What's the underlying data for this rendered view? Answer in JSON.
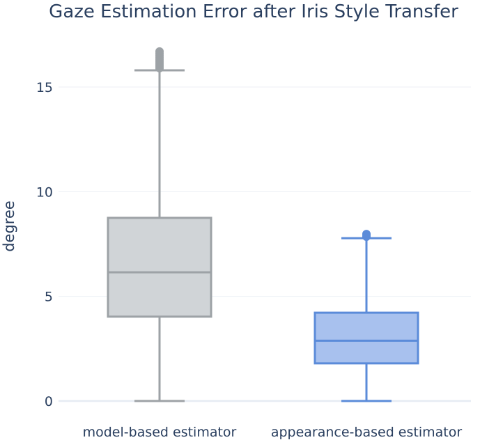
{
  "chart_data": {
    "type": "box",
    "title": "Gaze Estimation Error after Iris Style Transfer",
    "xlabel": "",
    "ylabel": "degree",
    "ylim": [
      0,
      17
    ],
    "yticks": [
      0,
      5,
      10,
      15
    ],
    "grid": true,
    "categories": [
      "model-based estimator",
      "appearance-based estimator"
    ],
    "series": [
      {
        "category": "model-based estimator",
        "color": "#9da2a6",
        "fill": "#d0d4d7",
        "min": 0,
        "q1": 4.03,
        "median": 6.15,
        "q3": 8.75,
        "max": 15.8,
        "outliers": [
          15.9,
          16.0,
          16.1,
          16.2,
          16.3,
          16.4,
          16.5,
          16.6,
          16.7
        ]
      },
      {
        "category": "appearance-based estimator",
        "color": "#5b8bd9",
        "fill": "#a8c1ee",
        "min": 0,
        "q1": 1.8,
        "median": 2.88,
        "q3": 4.22,
        "max": 7.78,
        "outliers": [
          7.85,
          7.92,
          7.98
        ]
      }
    ]
  }
}
